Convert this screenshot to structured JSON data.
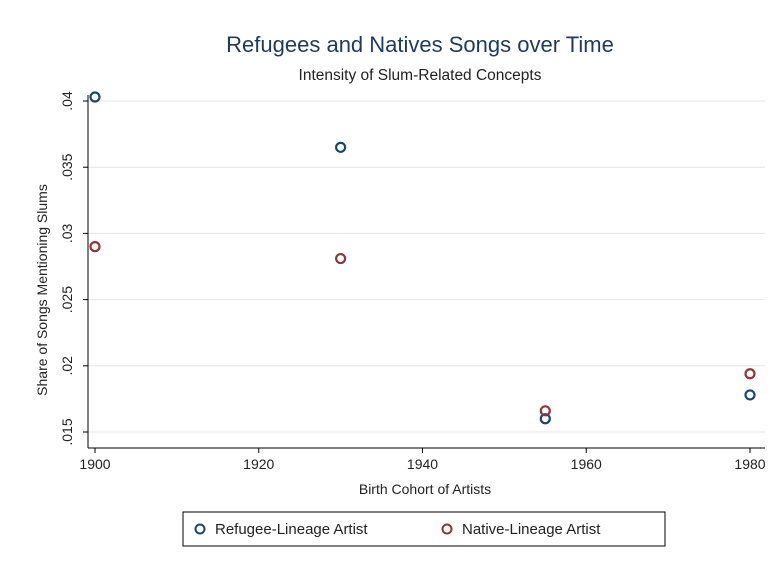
{
  "chart_data": {
    "type": "scatter",
    "title": "Refugees and Natives Songs over Time",
    "subtitle": "Intensity of Slum-Related Concepts",
    "xlabel": "Birth Cohort of Artists",
    "ylabel": "Share of Songs Mentioning Slums",
    "xlim": [
      1900,
      1980
    ],
    "ylim": [
      0.015,
      0.04
    ],
    "xticks": [
      "1900",
      "1920",
      "1940",
      "1960",
      "1980"
    ],
    "yticks": [
      ".015",
      ".02",
      ".025",
      ".03",
      ".035",
      ".04"
    ],
    "grid": true,
    "legend_position": "bottom",
    "series": [
      {
        "name": "Refugee-Lineage Artist",
        "color": "#1a476f",
        "x": [
          1900,
          1930,
          1955,
          1980
        ],
        "y": [
          0.0403,
          0.0365,
          0.016,
          0.0178
        ]
      },
      {
        "name": "Native-Lineage Artist",
        "color": "#90353b",
        "x": [
          1900,
          1930,
          1955,
          1980
        ],
        "y": [
          0.029,
          0.0281,
          0.0166,
          0.0194
        ]
      }
    ]
  }
}
